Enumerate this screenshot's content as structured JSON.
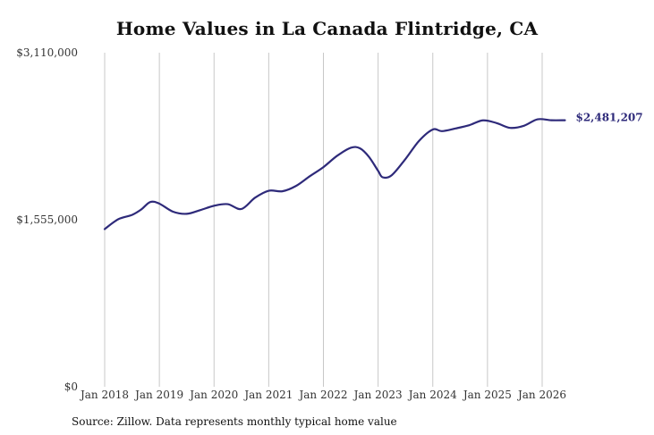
{
  "chart_data": {
    "type": "line",
    "title": "Home Values in La Canada Flintridge, CA",
    "source_note": "Source: Zillow. Data represents monthly typical home value",
    "xlabel": "",
    "ylabel": "",
    "ylim": [
      0,
      3110000
    ],
    "yticks": [
      {
        "value": 0,
        "label": "$0"
      },
      {
        "value": 1555000,
        "label": "$1,555,000"
      },
      {
        "value": 3110000,
        "label": "$3,110,000"
      }
    ],
    "xticks": [
      {
        "value": "2018-01",
        "label": "Jan 2018"
      },
      {
        "value": "2019-01",
        "label": "Jan 2019"
      },
      {
        "value": "2020-01",
        "label": "Jan 2020"
      },
      {
        "value": "2021-01",
        "label": "Jan 2021"
      },
      {
        "value": "2022-01",
        "label": "Jan 2022"
      },
      {
        "value": "2023-01",
        "label": "Jan 2023"
      },
      {
        "value": "2024-01",
        "label": "Jan 2024"
      },
      {
        "value": "2025-01",
        "label": "Jan 2025"
      },
      {
        "value": "2026-01",
        "label": "Jan 2026"
      }
    ],
    "grid": "vertical",
    "line_color": "#2e2a7a",
    "end_label": "$2,481,207",
    "series": [
      {
        "x": [
          "2018-01",
          "2018-04",
          "2018-07",
          "2018-09",
          "2018-11",
          "2019-01",
          "2019-04",
          "2019-07",
          "2019-10",
          "2020-01",
          "2020-04",
          "2020-07",
          "2020-10",
          "2021-01",
          "2021-04",
          "2021-07",
          "2021-10",
          "2022-01",
          "2022-04",
          "2022-07",
          "2022-09",
          "2022-11",
          "2023-01",
          "2023-02",
          "2023-04",
          "2023-07",
          "2023-10",
          "2024-01",
          "2024-03",
          "2024-06",
          "2024-09",
          "2024-12",
          "2025-03",
          "2025-06",
          "2025-09",
          "2025-12",
          "2026-03",
          "2026-06"
        ],
        "values": [
          1468000,
          1560000,
          1600000,
          1650000,
          1720000,
          1705000,
          1630000,
          1610000,
          1645000,
          1685000,
          1700000,
          1655000,
          1760000,
          1825000,
          1820000,
          1870000,
          1960000,
          2045000,
          2150000,
          2225000,
          2220000,
          2140000,
          2010000,
          1950000,
          1970000,
          2120000,
          2290000,
          2395000,
          2380000,
          2405000,
          2435000,
          2480000,
          2455000,
          2410000,
          2430000,
          2490000,
          2481000,
          2481207
        ]
      }
    ]
  }
}
